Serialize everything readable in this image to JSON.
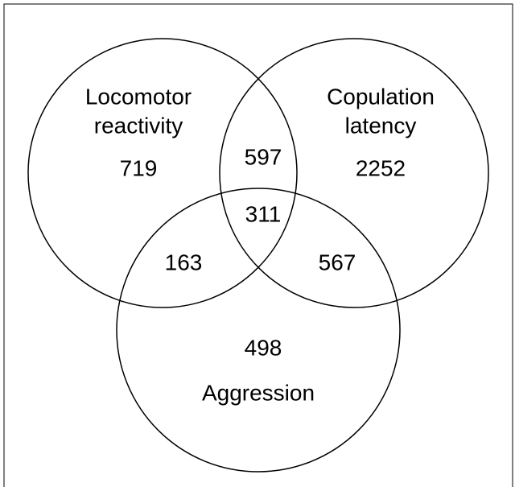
{
  "sets": [
    {
      "label": [
        "Locomotor",
        "reactivity"
      ]
    },
    {
      "label": [
        "Copulation",
        "latency"
      ]
    },
    {
      "label": [
        "Aggression"
      ]
    }
  ],
  "regions": {
    "locomotor_only": 719,
    "copulation_only": 2252,
    "aggression_only": 498,
    "locomotor_copulation": 597,
    "locomotor_aggression": 163,
    "copulation_aggression": 567,
    "all_three": 311
  }
}
